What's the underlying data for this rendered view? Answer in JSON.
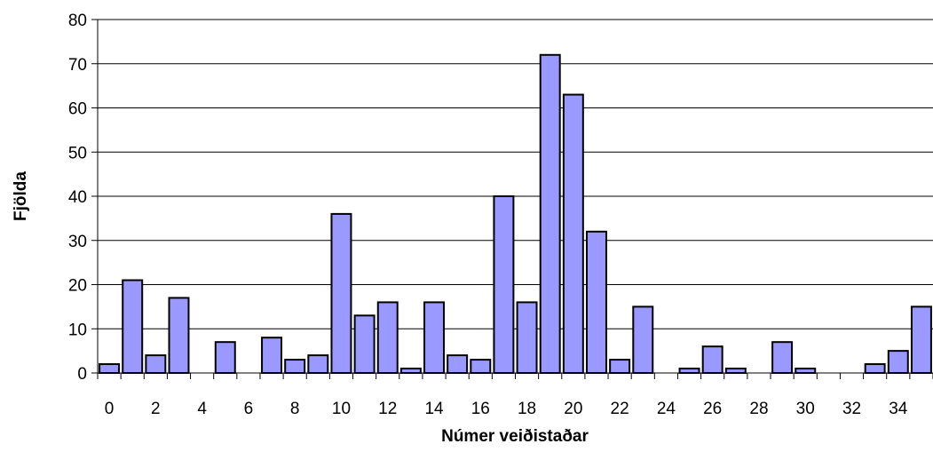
{
  "chart_data": {
    "type": "bar",
    "xlabel": "Númer veiðistaðar",
    "ylabel": "Fjölda",
    "ylim": [
      0,
      80
    ],
    "yticks": [
      0,
      10,
      20,
      30,
      40,
      50,
      60,
      70,
      80
    ],
    "xticks": [
      0,
      2,
      4,
      6,
      8,
      10,
      12,
      14,
      16,
      18,
      20,
      22,
      24,
      26,
      28,
      30,
      32,
      34
    ],
    "categories": [
      0,
      1,
      2,
      3,
      4,
      5,
      6,
      7,
      8,
      9,
      10,
      11,
      12,
      13,
      14,
      15,
      16,
      17,
      18,
      19,
      20,
      21,
      22,
      23,
      24,
      25,
      26,
      27,
      28,
      29,
      30,
      31,
      32,
      33,
      34,
      35
    ],
    "values": [
      2,
      21,
      4,
      17,
      0,
      7,
      0,
      8,
      3,
      4,
      36,
      13,
      16,
      1,
      16,
      4,
      3,
      40,
      16,
      72,
      63,
      32,
      3,
      15,
      0,
      1,
      6,
      1,
      0,
      7,
      1,
      0,
      0,
      2,
      5,
      15
    ],
    "grid": true,
    "bar_color": "#9999ff",
    "bar_edge_color": "#000000"
  }
}
